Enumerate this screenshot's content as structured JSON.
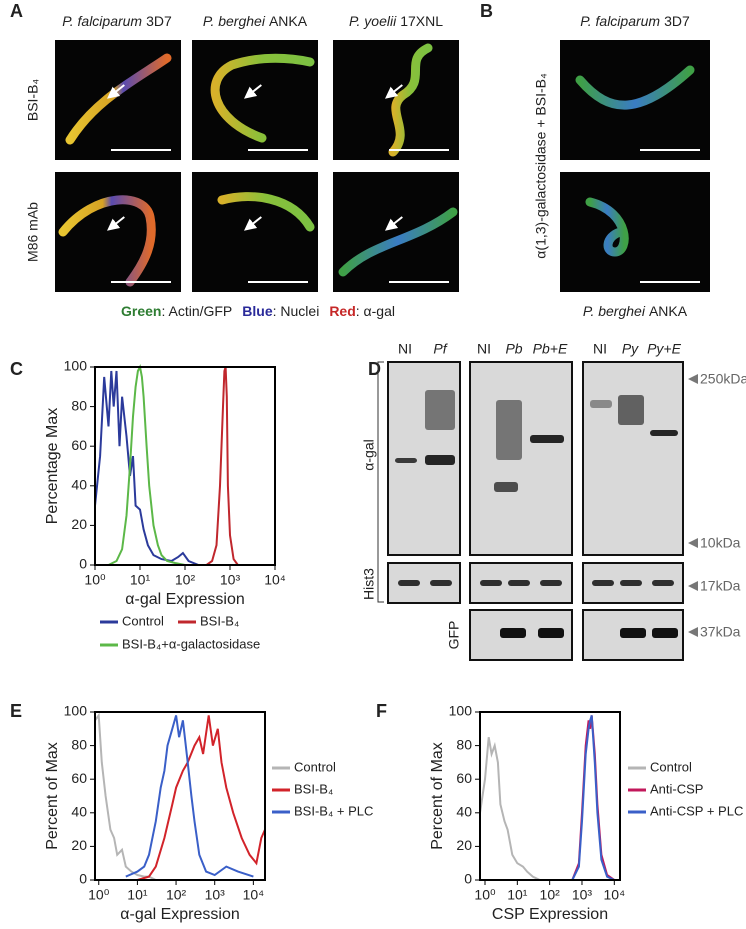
{
  "panels": {
    "A": {
      "label": "A",
      "columns": [
        {
          "species": "P. falciparum",
          "strain": "3D7"
        },
        {
          "species": "P. berghei",
          "strain": "ANKA"
        },
        {
          "species": "P. yoelii",
          "strain": "17XNL"
        }
      ],
      "rows": [
        "BSI-B₄",
        "M86 mAb"
      ],
      "legend": [
        {
          "key": "Green",
          "text": ": Actin/GFP"
        },
        {
          "key": "Blue",
          "text": ": Nuclei"
        },
        {
          "key": "Red",
          "text": ": α-gal"
        }
      ]
    },
    "B": {
      "label": "B",
      "top": {
        "species": "P. falciparum",
        "strain": "3D7"
      },
      "bottom": {
        "species": "P. berghei",
        "strain": "ANKA"
      },
      "side": "α(1,3)-galactosidase + BSI-B₄"
    },
    "D": {
      "label": "D",
      "lanes": [
        "NI",
        "Pf",
        "NI",
        "Pb",
        "Pb+E",
        "NI",
        "Py",
        "Py+E"
      ],
      "rows": [
        "α-gal",
        "Hist3",
        "GFP"
      ],
      "markers": [
        "250kDa",
        "10kDa",
        "17kDa",
        "37kDa"
      ]
    }
  },
  "chart_data": [
    {
      "type": "line",
      "label": "C",
      "ylabel": "Percentage Max",
      "xlabel": "α-gal Expression",
      "log_x": true,
      "xlim": [
        1,
        10000
      ],
      "ylim": [
        0,
        100
      ],
      "xticks": [
        {
          "value": 1,
          "label": "10⁰"
        },
        {
          "value": 10,
          "label": "10¹"
        },
        {
          "value": 100,
          "label": "10²"
        },
        {
          "value": 1000,
          "label": "10³"
        },
        {
          "value": 10000,
          "label": "10⁴"
        }
      ],
      "yticks": [
        0,
        20,
        40,
        60,
        80,
        100
      ],
      "series": [
        {
          "name": "Control",
          "color": "#2b3a9b",
          "x": [
            1,
            1.3,
            1.6,
            2,
            2.3,
            2.6,
            3,
            3.5,
            4,
            5,
            6,
            7,
            8,
            10,
            12,
            15,
            20,
            30,
            50,
            70,
            90,
            120,
            200,
            400
          ],
          "values": [
            30,
            55,
            95,
            70,
            98,
            80,
            98,
            60,
            85,
            65,
            45,
            55,
            30,
            28,
            18,
            10,
            5,
            3,
            2,
            4,
            6,
            2,
            0,
            0
          ]
        },
        {
          "name": "BSI-B₄",
          "color": "#c0272d",
          "x": [
            300,
            400,
            500,
            600,
            700,
            750,
            800,
            850,
            900,
            1000,
            1200,
            1500
          ],
          "values": [
            0,
            2,
            10,
            40,
            80,
            98,
            100,
            85,
            40,
            15,
            3,
            0
          ]
        },
        {
          "name": "BSI-B₄+α-galactosidase",
          "color": "#5cb848",
          "x": [
            2,
            3,
            4,
            5,
            6,
            7,
            8,
            9,
            10,
            11,
            12,
            14,
            16,
            20,
            25,
            30,
            40,
            60,
            100
          ],
          "values": [
            0,
            2,
            8,
            25,
            50,
            75,
            90,
            98,
            100,
            95,
            85,
            60,
            40,
            20,
            10,
            5,
            2,
            1,
            0
          ]
        }
      ]
    },
    {
      "type": "line",
      "label": "E",
      "ylabel": "Percent of Max",
      "xlabel": "α-gal Expression",
      "log_x": true,
      "xlim": [
        0.8,
        20000
      ],
      "ylim": [
        0,
        100
      ],
      "xticks": [
        {
          "value": 1,
          "label": "10⁰"
        },
        {
          "value": 10,
          "label": "10¹"
        },
        {
          "value": 100,
          "label": "10²"
        },
        {
          "value": 1000,
          "label": "10³"
        },
        {
          "value": 10000,
          "label": "10⁴"
        }
      ],
      "yticks": [
        0,
        20,
        40,
        60,
        80,
        100
      ],
      "series": [
        {
          "name": "Control",
          "color": "#b5b5b5",
          "x": [
            0.8,
            1,
            1.2,
            1.5,
            2,
            2.5,
            3,
            4,
            5,
            7,
            10,
            15,
            20,
            30
          ],
          "values": [
            95,
            98,
            70,
            50,
            30,
            25,
            15,
            18,
            8,
            5,
            3,
            2,
            2,
            0
          ]
        },
        {
          "name": "BSI-B₄",
          "color": "#d2232a",
          "x": [
            10,
            20,
            30,
            50,
            80,
            100,
            150,
            200,
            300,
            400,
            500,
            700,
            900,
            1200,
            1500,
            2000,
            3000,
            5000,
            8000,
            12000,
            16000,
            20000
          ],
          "values": [
            0,
            2,
            8,
            25,
            45,
            55,
            65,
            70,
            80,
            85,
            75,
            98,
            80,
            90,
            70,
            55,
            40,
            25,
            15,
            10,
            25,
            30
          ]
        },
        {
          "name": "BSI-B₄ + PLC",
          "color": "#3a5fc8",
          "x": [
            5,
            10,
            15,
            20,
            30,
            40,
            50,
            60,
            80,
            100,
            120,
            150,
            200,
            250,
            300,
            400,
            600,
            1000,
            2000,
            4000,
            10000
          ],
          "values": [
            2,
            5,
            8,
            15,
            35,
            55,
            65,
            80,
            90,
            98,
            85,
            95,
            70,
            50,
            35,
            15,
            5,
            3,
            8,
            5,
            2
          ]
        }
      ]
    },
    {
      "type": "line",
      "label": "F",
      "ylabel": "Percent of Max",
      "xlabel": "CSP Expression",
      "log_x": true,
      "xlim": [
        0.7,
        15000
      ],
      "ylim": [
        0,
        100
      ],
      "xticks": [
        {
          "value": 1,
          "label": "10⁰"
        },
        {
          "value": 10,
          "label": "10¹"
        },
        {
          "value": 100,
          "label": "10²"
        },
        {
          "value": 1000,
          "label": "10³"
        },
        {
          "value": 10000,
          "label": "10⁴"
        }
      ],
      "yticks": [
        0,
        20,
        40,
        60,
        80,
        100
      ],
      "series": [
        {
          "name": "Control",
          "color": "#b5b5b5",
          "x": [
            0.7,
            1,
            1.3,
            1.6,
            2,
            2.5,
            3,
            4,
            5,
            7,
            10,
            15,
            20,
            30,
            50
          ],
          "values": [
            40,
            60,
            85,
            75,
            80,
            70,
            45,
            35,
            30,
            15,
            10,
            8,
            5,
            2,
            0
          ]
        },
        {
          "name": "Anti-CSP",
          "color": "#c2185b",
          "x": [
            500,
            800,
            1000,
            1300,
            1600,
            1800,
            2000,
            2500,
            3000,
            4000,
            6000,
            10000
          ],
          "values": [
            0,
            10,
            40,
            80,
            95,
            90,
            98,
            75,
            45,
            15,
            3,
            0
          ]
        },
        {
          "name": "Anti-CSP + PLC",
          "color": "#3a5fc8",
          "x": [
            500,
            800,
            1000,
            1300,
            1600,
            1800,
            2000,
            2500,
            3000,
            4000,
            6000,
            10000
          ],
          "values": [
            0,
            8,
            35,
            75,
            90,
            95,
            98,
            70,
            40,
            12,
            2,
            0
          ]
        }
      ]
    }
  ]
}
